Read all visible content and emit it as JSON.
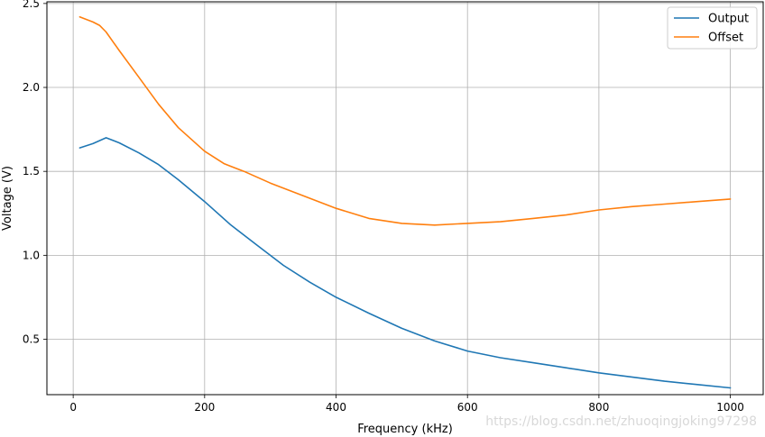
{
  "chart_data": {
    "type": "line",
    "title": "",
    "xlabel": "Frequency (kHz)",
    "ylabel": "Voltage (V)",
    "xlim": [
      -40,
      1050
    ],
    "ylim": [
      0.17,
      2.51
    ],
    "xticks": [
      0,
      200,
      400,
      600,
      800,
      1000
    ],
    "yticks": [
      0.5,
      1.0,
      1.5,
      2.0,
      2.5
    ],
    "xtick_labels": [
      "0",
      "200",
      "400",
      "600",
      "800",
      "1000"
    ],
    "ytick_labels": [
      "0.5",
      "1.0",
      "1.5",
      "2.0",
      "2.5"
    ],
    "grid": true,
    "legend_position": "top-right",
    "series": [
      {
        "name": "Output",
        "color": "#1f77b4",
        "x": [
          10,
          30,
          50,
          70,
          100,
          130,
          160,
          200,
          240,
          280,
          320,
          360,
          400,
          450,
          500,
          550,
          600,
          650,
          700,
          750,
          800,
          850,
          900,
          950,
          1000
        ],
        "y": [
          1.64,
          1.665,
          1.7,
          1.67,
          1.61,
          1.54,
          1.45,
          1.32,
          1.18,
          1.06,
          0.94,
          0.84,
          0.75,
          0.655,
          0.565,
          0.49,
          0.43,
          0.39,
          0.36,
          0.33,
          0.3,
          0.275,
          0.25,
          0.23,
          0.21
        ]
      },
      {
        "name": "Offset",
        "color": "#ff7f0e",
        "x": [
          10,
          30,
          40,
          50,
          70,
          100,
          130,
          160,
          200,
          230,
          260,
          300,
          350,
          400,
          450,
          500,
          550,
          600,
          650,
          700,
          750,
          800,
          850,
          900,
          950,
          1000
        ],
        "y": [
          2.42,
          2.39,
          2.37,
          2.33,
          2.22,
          2.06,
          1.9,
          1.76,
          1.62,
          1.545,
          1.5,
          1.43,
          1.355,
          1.28,
          1.22,
          1.19,
          1.18,
          1.19,
          1.2,
          1.22,
          1.24,
          1.27,
          1.29,
          1.305,
          1.32,
          1.335
        ]
      }
    ]
  },
  "watermark": "https://blog.csdn.net/zhuoqingjoking97298"
}
